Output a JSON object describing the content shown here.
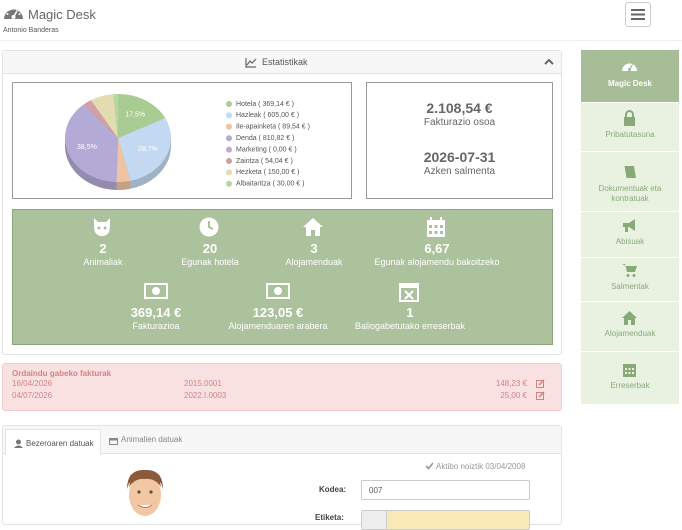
{
  "header": {
    "title": "Magic Desk",
    "user": "Antonio Banderas"
  },
  "sidebar": {
    "items": [
      "Magic Desk",
      "Pribatutasuna",
      "Dokumentuak eta kontratuak",
      "Abisuak",
      "Salmentak",
      "Alojamenduak",
      "Erreserbak"
    ]
  },
  "stats_panel": {
    "title": "Estatistikak"
  },
  "chart_data": {
    "type": "pie",
    "categories": [
      "Hotela ( 369,14 € )",
      "Hazleak ( 605,00 € )",
      "Ile-apainketa ( 89,54 € )",
      "Denda ( 810,82 € )",
      "Marketing ( 0,00 € )",
      "Zaintza ( 54,04 € )",
      "Hezketa ( 150,00 € )",
      "Albaitaritza ( 30,00 € )"
    ],
    "values": [
      17.51,
      28.69,
      4.25,
      38.45,
      0,
      2.56,
      7.11,
      1.42
    ],
    "value_labels": [
      "17,5%",
      "28,7%",
      null,
      "38,5%",
      null,
      null,
      null,
      null
    ],
    "colors": [
      "#a9cc92",
      "#c3d9f1",
      "#efc3a3",
      "#b3abd6",
      "#c7a3d8",
      "#d2a0a2",
      "#e4dcb1",
      "#b8d79e"
    ]
  },
  "totals": [
    {
      "value": "2.108,54 €",
      "label": "Fakturazio osoa"
    },
    {
      "value": "2026-07-31",
      "label": "Azken salmenta"
    }
  ],
  "counters": [
    {
      "value": "2",
      "label": "Animaliak"
    },
    {
      "value": "20",
      "label": "Egunak hotela"
    },
    {
      "value": "3",
      "label": "Alojamenduak"
    },
    {
      "value": "6,67",
      "label": "Egunak alojamendu bakoitzeko"
    },
    {
      "value": "369,14 €",
      "label": "Fakturazioa"
    },
    {
      "value": "123,05 €",
      "label": "Alojamenduaren arabera"
    },
    {
      "value": "1",
      "label": "Baliogabetutako erreserbak"
    }
  ],
  "invoices": {
    "title": "Ordaindu gabeko fakturak",
    "rows": [
      [
        "16/04/2026",
        "2015.0001",
        "148,23 €"
      ],
      [
        "04/07/2026",
        "2022.I.0003",
        "25,00 €"
      ]
    ]
  },
  "tabs": [
    "Bezeroaren datuak",
    "Animalien datuak"
  ],
  "form": {
    "status": "Aktibo noiztik 03/04/2008",
    "fields": [
      {
        "label": "Kodea:",
        "value": "007"
      },
      {
        "label": "Etiketa:"
      }
    ]
  }
}
